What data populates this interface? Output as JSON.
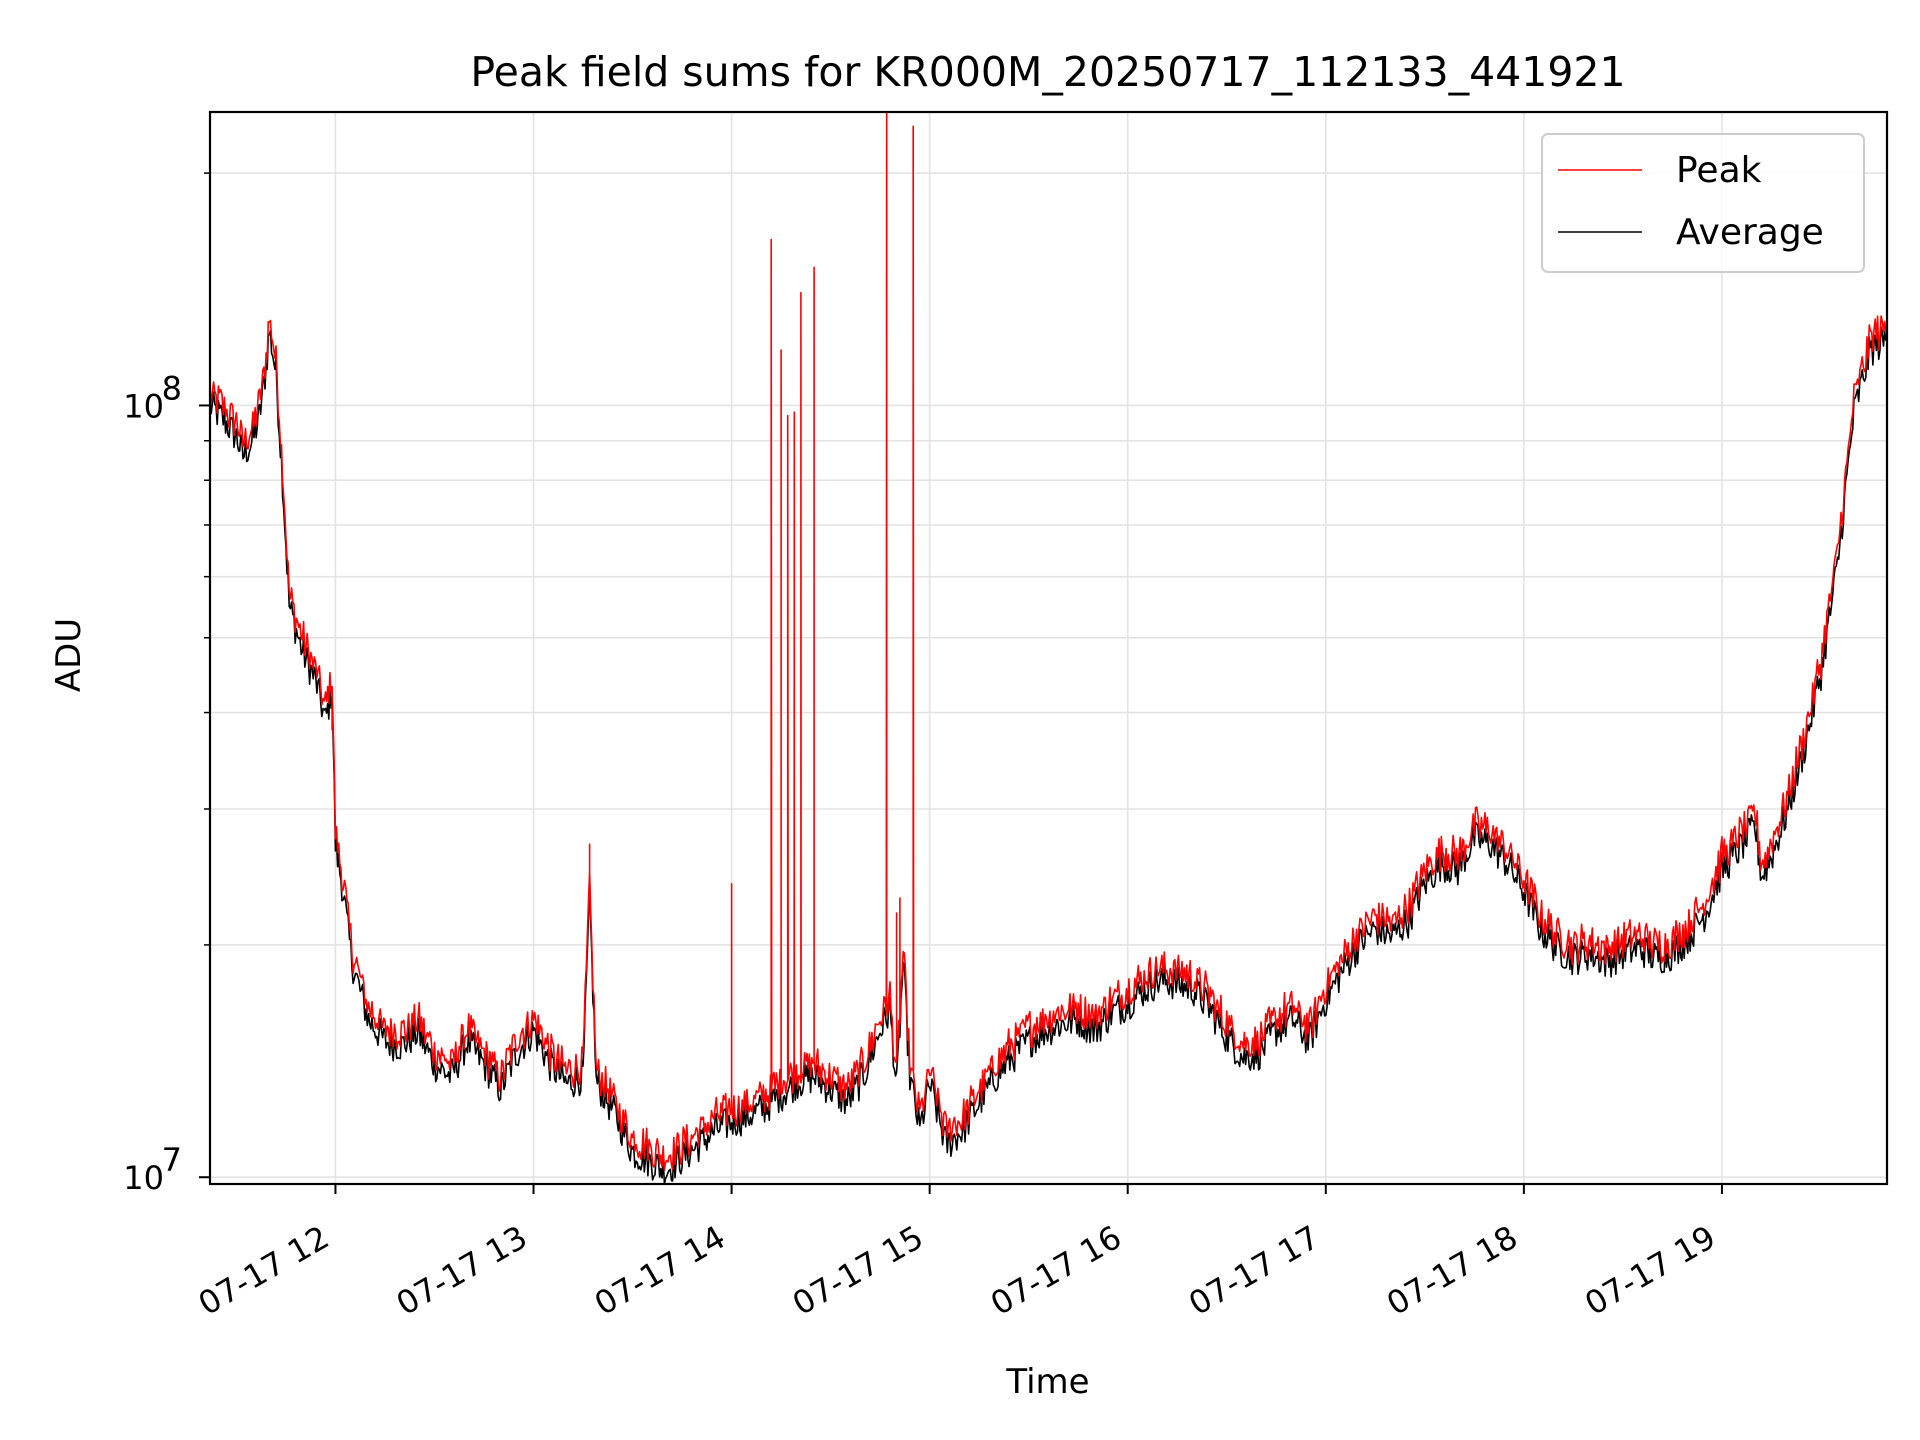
{
  "chart_data": {
    "type": "line",
    "title": "Peak field sums for KR000M_20250717_112133_441921",
    "xlabel": "Time",
    "ylabel": "ADU",
    "y_scale": "log",
    "ylim": [
      9800000,
      240000000
    ],
    "xlim": [
      "2025-07-17 11:22",
      "2025-07-17 19:50"
    ],
    "grid": true,
    "legend_position": "top-right",
    "x_ticks": [
      {
        "t": "2025-07-17 12:00",
        "label": "07-17 12"
      },
      {
        "t": "2025-07-17 13:00",
        "label": "07-17 13"
      },
      {
        "t": "2025-07-17 14:00",
        "label": "07-17 14"
      },
      {
        "t": "2025-07-17 15:00",
        "label": "07-17 15"
      },
      {
        "t": "2025-07-17 16:00",
        "label": "07-17 16"
      },
      {
        "t": "2025-07-17 17:00",
        "label": "07-17 17"
      },
      {
        "t": "2025-07-17 18:00",
        "label": "07-17 18"
      },
      {
        "t": "2025-07-17 19:00",
        "label": "07-17 19"
      }
    ],
    "y_ticks": [
      {
        "v": 10000000,
        "base": "10",
        "exp": "7"
      },
      {
        "v": 100000000,
        "base": "10",
        "exp": "8"
      }
    ],
    "series": [
      {
        "name": "Average",
        "color": "#000000",
        "points": [
          [
            "2025-07-17 11:22",
            100000000
          ],
          [
            "2025-07-17 11:26",
            96000000
          ],
          [
            "2025-07-17 11:30",
            91000000
          ],
          [
            "2025-07-17 11:32",
            86000000
          ],
          [
            "2025-07-17 11:35",
            90000000
          ],
          [
            "2025-07-17 11:37",
            97000000
          ],
          [
            "2025-07-17 11:39",
            112000000
          ],
          [
            "2025-07-17 11:40",
            125000000
          ],
          [
            "2025-07-17 11:42",
            110000000
          ],
          [
            "2025-07-17 11:44",
            80000000
          ],
          [
            "2025-07-17 11:46",
            55000000
          ],
          [
            "2025-07-17 11:50",
            48000000
          ],
          [
            "2025-07-17 11:54",
            44000000
          ],
          [
            "2025-07-17 11:57",
            39000000
          ],
          [
            "2025-07-17 11:59",
            43000000
          ],
          [
            "2025-07-17 12:00",
            27000000
          ],
          [
            "2025-07-17 12:02",
            24000000
          ],
          [
            "2025-07-17 12:05",
            19000000
          ],
          [
            "2025-07-17 12:10",
            16000000
          ],
          [
            "2025-07-17 12:15",
            15000000
          ],
          [
            "2025-07-17 12:20",
            14800000
          ],
          [
            "2025-07-17 12:25",
            15400000
          ],
          [
            "2025-07-17 12:30",
            14000000
          ],
          [
            "2025-07-17 12:35",
            13500000
          ],
          [
            "2025-07-17 12:40",
            15000000
          ],
          [
            "2025-07-17 12:45",
            14000000
          ],
          [
            "2025-07-17 12:50",
            13000000
          ],
          [
            "2025-07-17 12:55",
            14500000
          ],
          [
            "2025-07-17 13:00",
            15500000
          ],
          [
            "2025-07-17 13:05",
            14000000
          ],
          [
            "2025-07-17 13:10",
            13200000
          ],
          [
            "2025-07-17 13:15",
            13500000
          ],
          [
            "2025-07-17 13:17",
            23000000
          ],
          [
            "2025-07-17 13:19",
            13300000
          ],
          [
            "2025-07-17 13:25",
            12000000
          ],
          [
            "2025-07-17 13:30",
            10800000
          ],
          [
            "2025-07-17 13:35",
            10500000
          ],
          [
            "2025-07-17 13:40",
            10200000
          ],
          [
            "2025-07-17 13:45",
            10600000
          ],
          [
            "2025-07-17 13:50",
            11000000
          ],
          [
            "2025-07-17 13:55",
            11500000
          ],
          [
            "2025-07-17 14:00",
            11800000
          ],
          [
            "2025-07-17 14:05",
            12000000
          ],
          [
            "2025-07-17 14:10",
            12300000
          ],
          [
            "2025-07-17 14:15",
            12800000
          ],
          [
            "2025-07-17 14:20",
            13300000
          ],
          [
            "2025-07-17 14:25",
            13500000
          ],
          [
            "2025-07-17 14:30",
            13000000
          ],
          [
            "2025-07-17 14:35",
            12500000
          ],
          [
            "2025-07-17 14:40",
            13500000
          ],
          [
            "2025-07-17 14:45",
            15500000
          ],
          [
            "2025-07-17 14:48",
            16500000
          ],
          [
            "2025-07-17 14:50",
            13000000
          ],
          [
            "2025-07-17 14:52",
            19000000
          ],
          [
            "2025-07-17 14:54",
            13500000
          ],
          [
            "2025-07-17 14:57",
            11500000
          ],
          [
            "2025-07-17 15:00",
            13200000
          ],
          [
            "2025-07-17 15:05",
            11000000
          ],
          [
            "2025-07-17 15:10",
            11500000
          ],
          [
            "2025-07-17 15:15",
            12500000
          ],
          [
            "2025-07-17 15:20",
            13500000
          ],
          [
            "2025-07-17 15:25",
            14300000
          ],
          [
            "2025-07-17 15:30",
            15000000
          ],
          [
            "2025-07-17 15:35",
            15500000
          ],
          [
            "2025-07-17 15:40",
            15800000
          ],
          [
            "2025-07-17 15:45",
            16000000
          ],
          [
            "2025-07-17 15:50",
            15500000
          ],
          [
            "2025-07-17 15:55",
            16300000
          ],
          [
            "2025-07-17 16:00",
            16800000
          ],
          [
            "2025-07-17 16:05",
            17500000
          ],
          [
            "2025-07-17 16:10",
            18000000
          ],
          [
            "2025-07-17 16:15",
            17800000
          ],
          [
            "2025-07-17 16:20",
            17500000
          ],
          [
            "2025-07-17 16:25",
            16500000
          ],
          [
            "2025-07-17 16:30",
            15200000
          ],
          [
            "2025-07-17 16:35",
            14300000
          ],
          [
            "2025-07-17 16:40",
            14500000
          ],
          [
            "2025-07-17 16:45",
            15500000
          ],
          [
            "2025-07-17 16:50",
            16000000
          ],
          [
            "2025-07-17 16:55",
            15000000
          ],
          [
            "2025-07-17 17:00",
            17000000
          ],
          [
            "2025-07-17 17:05",
            18500000
          ],
          [
            "2025-07-17 17:10",
            20000000
          ],
          [
            "2025-07-17 17:15",
            21000000
          ],
          [
            "2025-07-17 17:20",
            20500000
          ],
          [
            "2025-07-17 17:25",
            21500000
          ],
          [
            "2025-07-17 17:30",
            24000000
          ],
          [
            "2025-07-17 17:35",
            25500000
          ],
          [
            "2025-07-17 17:40",
            25000000
          ],
          [
            "2025-07-17 17:45",
            27500000
          ],
          [
            "2025-07-17 17:50",
            27000000
          ],
          [
            "2025-07-17 17:55",
            25500000
          ],
          [
            "2025-07-17 18:00",
            23500000
          ],
          [
            "2025-07-17 18:05",
            21000000
          ],
          [
            "2025-07-17 18:10",
            19800000
          ],
          [
            "2025-07-17 18:15",
            19200000
          ],
          [
            "2025-07-17 18:20",
            19500000
          ],
          [
            "2025-07-17 18:25",
            19000000
          ],
          [
            "2025-07-17 18:30",
            19500000
          ],
          [
            "2025-07-17 18:35",
            19800000
          ],
          [
            "2025-07-17 18:40",
            19200000
          ],
          [
            "2025-07-17 18:45",
            19500000
          ],
          [
            "2025-07-17 18:50",
            20500000
          ],
          [
            "2025-07-17 18:55",
            22000000
          ],
          [
            "2025-07-17 19:00",
            25000000
          ],
          [
            "2025-07-17 19:05",
            26500000
          ],
          [
            "2025-07-17 19:10",
            28500000
          ],
          [
            "2025-07-17 19:12",
            24500000
          ],
          [
            "2025-07-17 19:15",
            26000000
          ],
          [
            "2025-07-17 19:20",
            30000000
          ],
          [
            "2025-07-17 19:25",
            36000000
          ],
          [
            "2025-07-17 19:30",
            45000000
          ],
          [
            "2025-07-17 19:35",
            62000000
          ],
          [
            "2025-07-17 19:40",
            98000000
          ],
          [
            "2025-07-17 19:45",
            118000000
          ],
          [
            "2025-07-17 19:50",
            122000000
          ]
        ]
      },
      {
        "name": "Peak",
        "color": "#ff0000",
        "spikes": [
          [
            "2025-07-17 11:59",
            38000000
          ],
          [
            "2025-07-17 13:17",
            27000000
          ],
          [
            "2025-07-17 14:00",
            24000000
          ],
          [
            "2025-07-17 14:12",
            164000000
          ],
          [
            "2025-07-17 14:15",
            118000000
          ],
          [
            "2025-07-17 14:17",
            97000000
          ],
          [
            "2025-07-17 14:19",
            98000000
          ],
          [
            "2025-07-17 14:21",
            140000000
          ],
          [
            "2025-07-17 14:25",
            151000000
          ],
          [
            "2025-07-17 14:47",
            240000000
          ],
          [
            "2025-07-17 14:50",
            22000000
          ],
          [
            "2025-07-17 14:51",
            23000000
          ],
          [
            "2025-07-17 14:55",
            230000000
          ]
        ]
      }
    ]
  }
}
